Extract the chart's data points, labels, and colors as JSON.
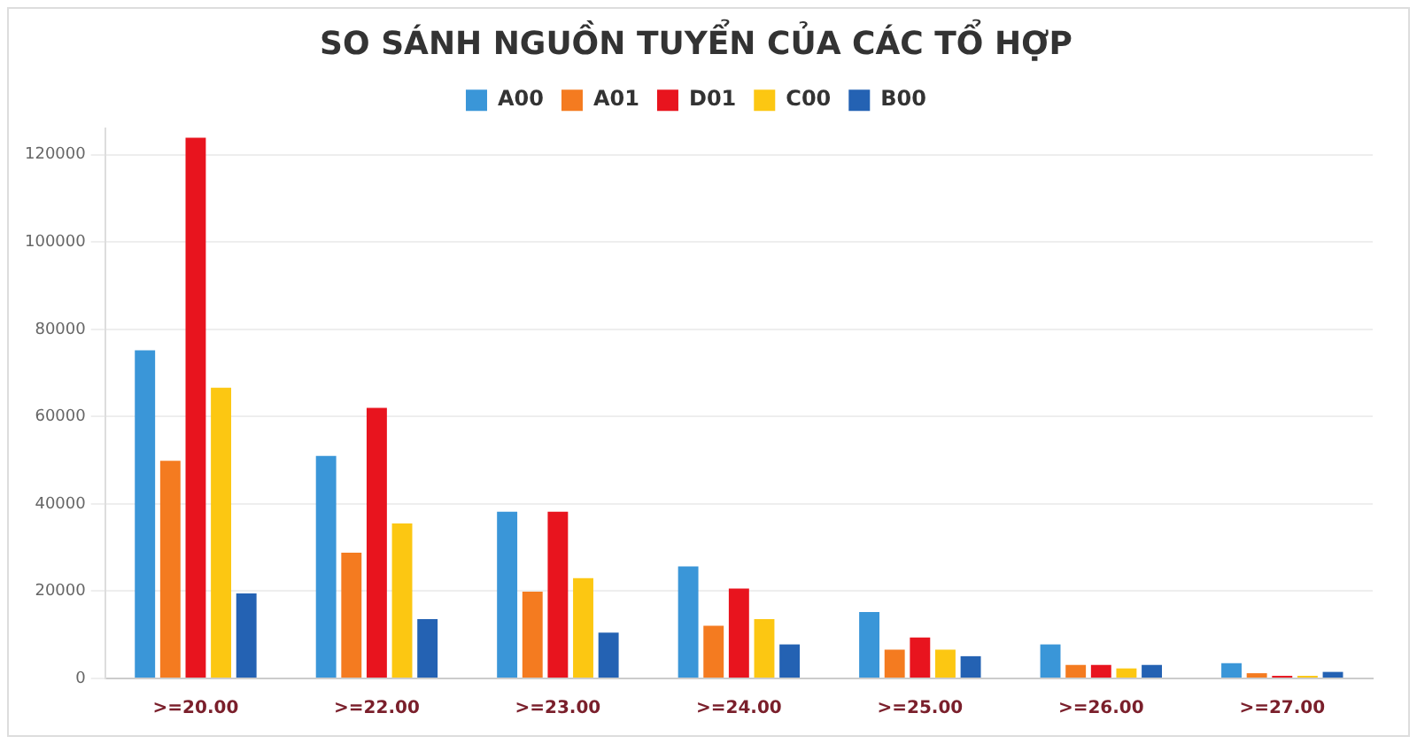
{
  "chart_data": {
    "type": "bar",
    "title": "SO SÁNH NGUỒN TUYỂN CỦA CÁC TỔ HỢP",
    "categories": [
      ">=20.00",
      ">=22.00",
      ">=23.00",
      ">=24.00",
      ">=25.00",
      ">=26.00",
      ">=27.00"
    ],
    "series": [
      {
        "name": "A00",
        "color": "#3a96d8",
        "values": [
          75200,
          51000,
          38200,
          25700,
          15200,
          7800,
          3500
        ]
      },
      {
        "name": "A01",
        "color": "#f47b20",
        "values": [
          49900,
          28800,
          19900,
          12100,
          6600,
          3100,
          1200
        ]
      },
      {
        "name": "D01",
        "color": "#e8141e",
        "values": [
          123900,
          62000,
          38200,
          20600,
          9400,
          3100,
          600
        ]
      },
      {
        "name": "C00",
        "color": "#fcc712",
        "values": [
          66600,
          35500,
          23000,
          13600,
          6600,
          2300,
          600
        ]
      },
      {
        "name": "B00",
        "color": "#2462b3",
        "values": [
          19500,
          13600,
          10500,
          7800,
          5100,
          3100,
          1500
        ]
      }
    ],
    "ylim": [
      0,
      126000
    ],
    "yticks": [
      0,
      20000,
      40000,
      60000,
      80000,
      100000,
      120000
    ],
    "grid": "y",
    "legend": "top"
  }
}
